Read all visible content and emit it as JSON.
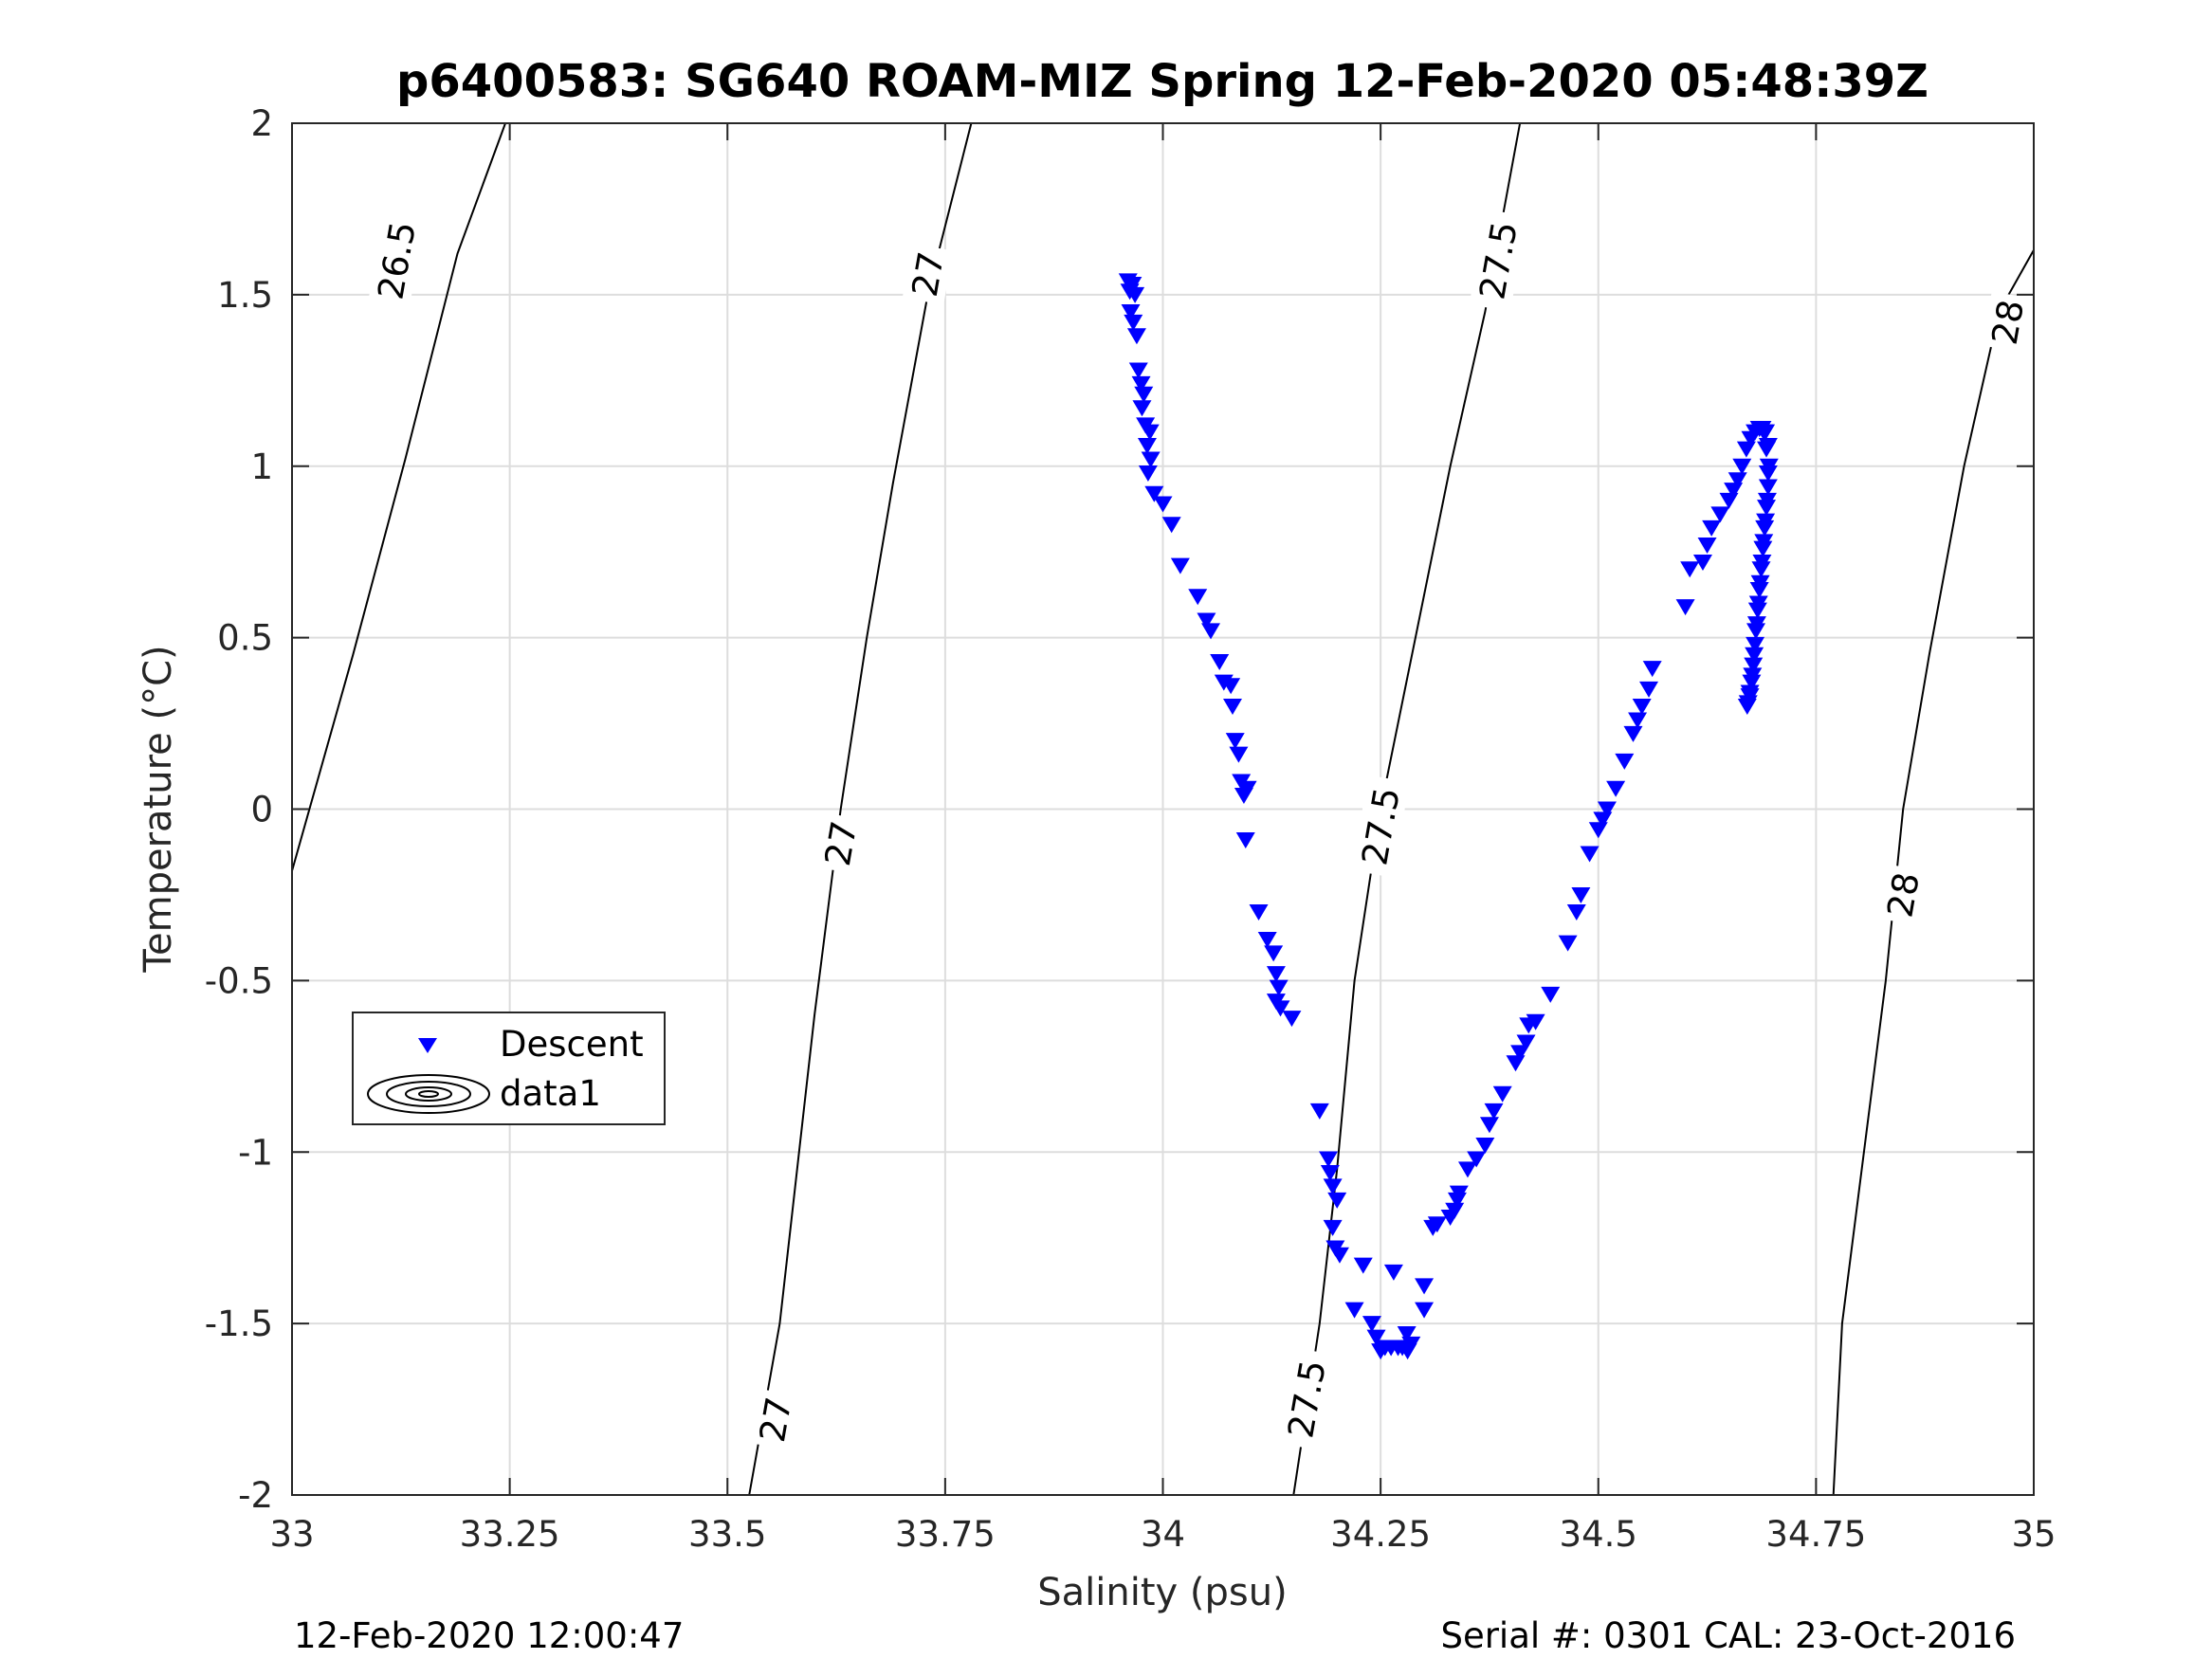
{
  "chart_data": {
    "type": "scatter",
    "title": "p6400583: SG640 ROAM-MIZ Spring 12-Feb-2020 05:48:39Z",
    "xlabel": "Salinity (psu)",
    "ylabel": "Temperature (°C)",
    "xlim": [
      33,
      35
    ],
    "ylim": [
      -2,
      2
    ],
    "x_ticks": [
      33,
      33.25,
      33.5,
      33.75,
      34,
      34.25,
      34.5,
      34.75,
      35
    ],
    "x_tick_labels": [
      "33",
      "33.25",
      "33.5",
      "33.75",
      "34",
      "34.25",
      "34.5",
      "34.75",
      "35"
    ],
    "y_ticks": [
      -2,
      -1.5,
      -1,
      -0.5,
      0,
      0.5,
      1,
      1.5,
      2
    ],
    "y_tick_labels": [
      "-2",
      "-1.5",
      "-1",
      "-0.5",
      "0",
      "0.5",
      "1",
      "1.5",
      "2"
    ],
    "grid": true,
    "legend": {
      "placement": "middle-left",
      "entries": [
        {
          "label": "Descent",
          "symbol": "down-triangle",
          "color": "#0000ff"
        },
        {
          "label": "data1",
          "symbol": "contour-ellipses",
          "color": "#000000"
        }
      ]
    },
    "series": [
      {
        "name": "Descent",
        "marker": "down-triangle",
        "color": "#0000ff",
        "points": [
          [
            33.96,
            1.54
          ],
          [
            33.965,
            1.53
          ],
          [
            33.962,
            1.51
          ],
          [
            33.968,
            1.5
          ],
          [
            33.963,
            1.45
          ],
          [
            33.966,
            1.42
          ],
          [
            33.97,
            1.38
          ],
          [
            33.972,
            1.28
          ],
          [
            33.975,
            1.24
          ],
          [
            33.978,
            1.21
          ],
          [
            33.976,
            1.17
          ],
          [
            33.98,
            1.12
          ],
          [
            33.985,
            1.1
          ],
          [
            33.982,
            1.06
          ],
          [
            33.986,
            1.02
          ],
          [
            33.983,
            0.98
          ],
          [
            33.99,
            0.92
          ],
          [
            34.0,
            0.89
          ],
          [
            34.01,
            0.83
          ],
          [
            34.02,
            0.71
          ],
          [
            34.04,
            0.62
          ],
          [
            34.05,
            0.55
          ],
          [
            34.055,
            0.52
          ],
          [
            34.065,
            0.43
          ],
          [
            34.07,
            0.37
          ],
          [
            34.078,
            0.36
          ],
          [
            34.08,
            0.3
          ],
          [
            34.083,
            0.2
          ],
          [
            34.087,
            0.16
          ],
          [
            34.09,
            0.08
          ],
          [
            34.093,
            0.04
          ],
          [
            34.097,
            0.06
          ],
          [
            34.095,
            -0.09
          ],
          [
            34.11,
            -0.3
          ],
          [
            34.12,
            -0.38
          ],
          [
            34.127,
            -0.42
          ],
          [
            34.13,
            -0.48
          ],
          [
            34.133,
            -0.52
          ],
          [
            34.13,
            -0.56
          ],
          [
            34.135,
            -0.58
          ],
          [
            34.148,
            -0.61
          ],
          [
            34.18,
            -0.88
          ],
          [
            34.19,
            -1.02
          ],
          [
            34.192,
            -1.06
          ],
          [
            34.195,
            -1.1
          ],
          [
            34.2,
            -1.14
          ],
          [
            34.195,
            -1.22
          ],
          [
            34.198,
            -1.28
          ],
          [
            34.203,
            -1.3
          ],
          [
            34.23,
            -1.33
          ],
          [
            34.265,
            -1.35
          ],
          [
            34.3,
            -1.39
          ],
          [
            34.3,
            -1.46
          ],
          [
            34.22,
            -1.46
          ],
          [
            34.24,
            -1.5
          ],
          [
            34.245,
            -1.54
          ],
          [
            34.25,
            -1.58
          ],
          [
            34.255,
            -1.57
          ],
          [
            34.262,
            -1.57
          ],
          [
            34.27,
            -1.57
          ],
          [
            34.275,
            -1.57
          ],
          [
            34.281,
            -1.58
          ],
          [
            34.285,
            -1.56
          ],
          [
            34.28,
            -1.53
          ],
          [
            34.31,
            -1.22
          ],
          [
            34.315,
            -1.21
          ],
          [
            34.33,
            -1.19
          ],
          [
            34.335,
            -1.17
          ],
          [
            34.338,
            -1.14
          ],
          [
            34.34,
            -1.12
          ],
          [
            34.35,
            -1.05
          ],
          [
            34.36,
            -1.02
          ],
          [
            34.37,
            -0.98
          ],
          [
            34.375,
            -0.92
          ],
          [
            34.38,
            -0.88
          ],
          [
            34.39,
            -0.83
          ],
          [
            34.405,
            -0.74
          ],
          [
            34.41,
            -0.71
          ],
          [
            34.417,
            -0.68
          ],
          [
            34.42,
            -0.63
          ],
          [
            34.428,
            -0.62
          ],
          [
            34.445,
            -0.54
          ],
          [
            34.465,
            -0.39
          ],
          [
            34.475,
            -0.3
          ],
          [
            34.48,
            -0.25
          ],
          [
            34.49,
            -0.13
          ],
          [
            34.5,
            -0.06
          ],
          [
            34.505,
            -0.03
          ],
          [
            34.51,
            0.0
          ],
          [
            34.52,
            0.06
          ],
          [
            34.53,
            0.14
          ],
          [
            34.54,
            0.22
          ],
          [
            34.545,
            0.26
          ],
          [
            34.55,
            0.3
          ],
          [
            34.558,
            0.35
          ],
          [
            34.562,
            0.41
          ],
          [
            34.6,
            0.59
          ],
          [
            34.605,
            0.7
          ],
          [
            34.62,
            0.72
          ],
          [
            34.625,
            0.77
          ],
          [
            34.63,
            0.82
          ],
          [
            34.64,
            0.86
          ],
          [
            34.65,
            0.9
          ],
          [
            34.655,
            0.93
          ],
          [
            34.66,
            0.96
          ],
          [
            34.665,
            1.0
          ],
          [
            34.67,
            1.05
          ],
          [
            34.675,
            1.08
          ],
          [
            34.68,
            1.1
          ],
          [
            34.685,
            1.11
          ],
          [
            34.69,
            1.1
          ],
          [
            34.693,
            1.05
          ],
          [
            34.695,
            0.98
          ],
          [
            34.694,
            0.9
          ],
          [
            34.692,
            0.84
          ],
          [
            34.69,
            0.78
          ],
          [
            34.688,
            0.72
          ],
          [
            34.686,
            0.66
          ],
          [
            34.684,
            0.6
          ],
          [
            34.682,
            0.54
          ],
          [
            34.68,
            0.48
          ],
          [
            34.678,
            0.42
          ],
          [
            34.676,
            0.37
          ],
          [
            34.674,
            0.34
          ],
          [
            34.672,
            0.31
          ],
          [
            34.671,
            0.3
          ],
          [
            34.674,
            0.33
          ],
          [
            34.677,
            0.39
          ],
          [
            34.679,
            0.45
          ],
          [
            34.681,
            0.52
          ],
          [
            34.683,
            0.58
          ],
          [
            34.685,
            0.64
          ],
          [
            34.687,
            0.7
          ],
          [
            34.689,
            0.76
          ],
          [
            34.691,
            0.82
          ],
          [
            34.693,
            0.88
          ],
          [
            34.695,
            0.94
          ],
          [
            34.696,
            1.0
          ],
          [
            34.695,
            1.06
          ],
          [
            34.692,
            1.1
          ],
          [
            34.688,
            1.11
          ]
        ]
      }
    ],
    "contours": [
      {
        "level": "26.5",
        "points": [
          [
            33.0,
            -0.18
          ],
          [
            33.07,
            0.45
          ],
          [
            33.13,
            1.02
          ],
          [
            33.19,
            1.62
          ],
          [
            33.245,
            2.0
          ]
        ]
      },
      {
        "level": "27",
        "points": [
          [
            33.525,
            -2.0
          ],
          [
            33.56,
            -1.5
          ],
          [
            33.6,
            -0.6
          ],
          [
            33.63,
            0.0
          ],
          [
            33.66,
            0.5
          ],
          [
            33.69,
            0.95
          ],
          [
            33.73,
            1.5
          ],
          [
            33.78,
            2.0
          ]
        ]
      },
      {
        "level": "27.5",
        "points": [
          [
            34.15,
            -2.0
          ],
          [
            34.18,
            -1.5
          ],
          [
            34.2,
            -1.05
          ],
          [
            34.22,
            -0.5
          ],
          [
            34.25,
            0.0
          ],
          [
            34.29,
            0.5
          ],
          [
            34.33,
            1.0
          ],
          [
            34.37,
            1.45
          ],
          [
            34.41,
            2.0
          ]
        ]
      },
      {
        "level": "28",
        "points": [
          [
            34.77,
            -2.0
          ],
          [
            34.78,
            -1.5
          ],
          [
            34.83,
            -0.5
          ],
          [
            34.85,
            0.0
          ],
          [
            34.88,
            0.45
          ],
          [
            34.92,
            1.0
          ],
          [
            34.96,
            1.45
          ],
          [
            35.0,
            1.63
          ]
        ]
      }
    ],
    "contour_labels": [
      {
        "text": "26.5",
        "x": 33.12,
        "y": 1.6
      },
      {
        "text": "27",
        "x": 33.73,
        "y": 1.56
      },
      {
        "text": "27",
        "x": 33.63,
        "y": -0.1
      },
      {
        "text": "27",
        "x": 33.555,
        "y": -1.78
      },
      {
        "text": "27.5",
        "x": 34.385,
        "y": 1.6
      },
      {
        "text": "27.5",
        "x": 34.25,
        "y": -0.05
      },
      {
        "text": "27.5",
        "x": 34.165,
        "y": -1.72
      },
      {
        "text": "28",
        "x": 34.97,
        "y": 1.42
      },
      {
        "text": "28",
        "x": 34.85,
        "y": -0.25
      }
    ]
  },
  "footer": {
    "left": "12-Feb-2020 12:00:47",
    "right": "Serial #: 0301  CAL: 23-Oct-2016"
  },
  "colors": {
    "data": "#0000ff",
    "contour": "#000000",
    "grid": "#dddddd",
    "axis": "#262626"
  }
}
